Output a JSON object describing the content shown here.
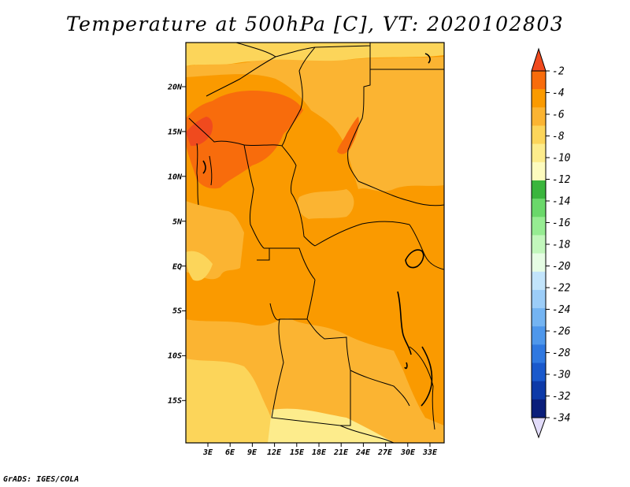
{
  "title": "Temperature at 500hPa [C], VT: 2020102803",
  "credit": "GrADS: IGES/COLA",
  "lat_labels": [
    "20N",
    "15N",
    "10N",
    "5N",
    "EQ",
    "5S",
    "10S",
    "15S"
  ],
  "lon_labels": [
    "3E",
    "6E",
    "9E",
    "12E",
    "15E",
    "18E",
    "21E",
    "24E",
    "27E",
    "30E",
    "33E"
  ],
  "colorbar": {
    "labels": [
      "-2",
      "-4",
      "-6",
      "-8",
      "-10",
      "-12",
      "-14",
      "-16",
      "-18",
      "-20",
      "-22",
      "-24",
      "-26",
      "-28",
      "-30",
      "-32",
      "-34"
    ],
    "colors": [
      "#f04a1e",
      "#f86c0c",
      "#fa9a00",
      "#fbb432",
      "#fcd55a",
      "#fdec8c",
      "#fdfbbe",
      "#3ab53d",
      "#6ad86a",
      "#96ec92",
      "#c2f7bc",
      "#e6fde4",
      "#c2e4fb",
      "#9ccdf8",
      "#74b4f2",
      "#4e97eb",
      "#2f78e0",
      "#1a59cc",
      "#0d3aa8",
      "#0a1e7a",
      "#e2dcfa"
    ]
  }
}
